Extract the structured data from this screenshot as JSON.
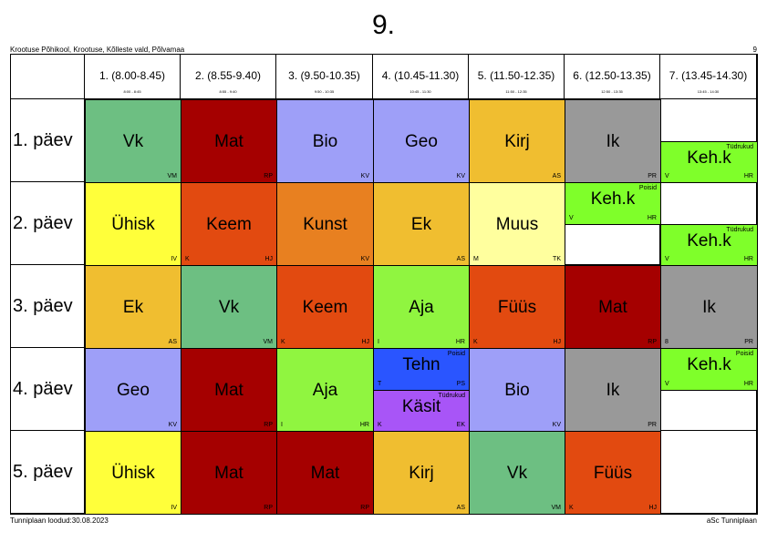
{
  "title": "9.",
  "school": "Krootuse Põhikool, Krootuse, Kõlleste vald, Põlvamaa",
  "page_number": "9",
  "footer_left": "Tunniplaan loodud:30.08.2023",
  "footer_right": "aSc Tunniplaan",
  "periods": [
    {
      "label": "1. (8.00-8.45)",
      "time": "8:00 - 8:45"
    },
    {
      "label": "2. (8.55-9.40)",
      "time": "8:55 - 9:40"
    },
    {
      "label": "3. (9.50-10.35)",
      "time": "9:50 - 10:35"
    },
    {
      "label": "4. (10.45-11.30)",
      "time": "10:45 - 11:30"
    },
    {
      "label": "5. (11.50-12.35)",
      "time": "11:50 - 12:35"
    },
    {
      "label": "6. (12.50-13.35)",
      "time": "12:50 - 13:35"
    },
    {
      "label": "7. (13.45-14.30)",
      "time": "13:45 - 14:30"
    }
  ],
  "days": [
    "1. päev",
    "2. päev",
    "3. päev",
    "4. päev",
    "5. päev"
  ],
  "colors": {
    "Vk": "#6dbf82",
    "Mat": "#a50000",
    "Bio": "#9e9ff8",
    "Geo": "#9e9ff8",
    "Kirj": "#f0be30",
    "Ik": "#999999",
    "Keh.k": "#7fff2a",
    "Ühisk": "#ffff3a",
    "Keem": "#e24a10",
    "Kunst": "#e88020",
    "Ek": "#f0be30",
    "Muus": "#ffff9e",
    "Aja": "#90f540",
    "Füüs": "#e24a10",
    "Tehn": "#2a55ff",
    "Käsit": "#a855f7"
  },
  "lessons": [
    {
      "day": 0,
      "period": 0,
      "subject": "Vk",
      "teacher": "VM",
      "room": ""
    },
    {
      "day": 0,
      "period": 1,
      "subject": "Mat",
      "teacher": "RP",
      "room": ""
    },
    {
      "day": 0,
      "period": 2,
      "subject": "Bio",
      "teacher": "KV",
      "room": ""
    },
    {
      "day": 0,
      "period": 3,
      "subject": "Geo",
      "teacher": "KV",
      "room": ""
    },
    {
      "day": 0,
      "period": 4,
      "subject": "Kirj",
      "teacher": "AS",
      "room": ""
    },
    {
      "day": 0,
      "period": 5,
      "subject": "Ik",
      "teacher": "PR",
      "room": ""
    },
    {
      "day": 0,
      "period": 6,
      "subject": "Keh.k",
      "teacher": "HR",
      "room": "V",
      "group": "Tüdrukud",
      "half": "bottom"
    },
    {
      "day": 1,
      "period": 0,
      "subject": "Ühisk",
      "teacher": "IV",
      "room": ""
    },
    {
      "day": 1,
      "period": 1,
      "subject": "Keem",
      "teacher": "HJ",
      "room": "K"
    },
    {
      "day": 1,
      "period": 2,
      "subject": "Kunst",
      "teacher": "KV",
      "room": ""
    },
    {
      "day": 1,
      "period": 3,
      "subject": "Ek",
      "teacher": "AS",
      "room": ""
    },
    {
      "day": 1,
      "period": 4,
      "subject": "Muus",
      "teacher": "TK",
      "room": "M"
    },
    {
      "day": 1,
      "period": 5,
      "subject": "Keh.k",
      "teacher": "HR",
      "room": "V",
      "group": "Poisid",
      "half": "top"
    },
    {
      "day": 1,
      "period": 6,
      "subject": "Keh.k",
      "teacher": "HR",
      "room": "V",
      "group": "Tüdrukud",
      "half": "bottom"
    },
    {
      "day": 2,
      "period": 0,
      "subject": "Ek",
      "teacher": "AS",
      "room": ""
    },
    {
      "day": 2,
      "period": 1,
      "subject": "Vk",
      "teacher": "VM",
      "room": ""
    },
    {
      "day": 2,
      "period": 2,
      "subject": "Keem",
      "teacher": "HJ",
      "room": "K"
    },
    {
      "day": 2,
      "period": 3,
      "subject": "Aja",
      "teacher": "HR",
      "room": "I"
    },
    {
      "day": 2,
      "period": 4,
      "subject": "Füüs",
      "teacher": "HJ",
      "room": "K"
    },
    {
      "day": 2,
      "period": 5,
      "subject": "Mat",
      "teacher": "RP",
      "room": ""
    },
    {
      "day": 2,
      "period": 6,
      "subject": "Ik",
      "teacher": "PR",
      "room": "8"
    },
    {
      "day": 3,
      "period": 0,
      "subject": "Geo",
      "teacher": "KV",
      "room": ""
    },
    {
      "day": 3,
      "period": 1,
      "subject": "Mat",
      "teacher": "RP",
      "room": ""
    },
    {
      "day": 3,
      "period": 2,
      "subject": "Aja",
      "teacher": "HR",
      "room": "I"
    },
    {
      "day": 3,
      "period": 3,
      "subject": "Tehn",
      "teacher": "PS",
      "room": "T",
      "group": "Poisid",
      "half": "top"
    },
    {
      "day": 3,
      "period": 3,
      "subject": "Käsit",
      "teacher": "EK",
      "room": "K",
      "group": "Tüdrukud",
      "half": "bottom"
    },
    {
      "day": 3,
      "period": 4,
      "subject": "Bio",
      "teacher": "KV",
      "room": ""
    },
    {
      "day": 3,
      "period": 5,
      "subject": "Ik",
      "teacher": "PR",
      "room": ""
    },
    {
      "day": 3,
      "period": 6,
      "subject": "Keh.k",
      "teacher": "HR",
      "room": "V",
      "group": "Poisid",
      "half": "top"
    },
    {
      "day": 4,
      "period": 0,
      "subject": "Ühisk",
      "teacher": "IV",
      "room": ""
    },
    {
      "day": 4,
      "period": 1,
      "subject": "Mat",
      "teacher": "RP",
      "room": ""
    },
    {
      "day": 4,
      "period": 2,
      "subject": "Mat",
      "teacher": "RP",
      "room": ""
    },
    {
      "day": 4,
      "period": 3,
      "subject": "Kirj",
      "teacher": "AS",
      "room": ""
    },
    {
      "day": 4,
      "period": 4,
      "subject": "Vk",
      "teacher": "VM",
      "room": ""
    },
    {
      "day": 4,
      "period": 5,
      "subject": "Füüs",
      "teacher": "HJ",
      "room": "K"
    }
  ]
}
